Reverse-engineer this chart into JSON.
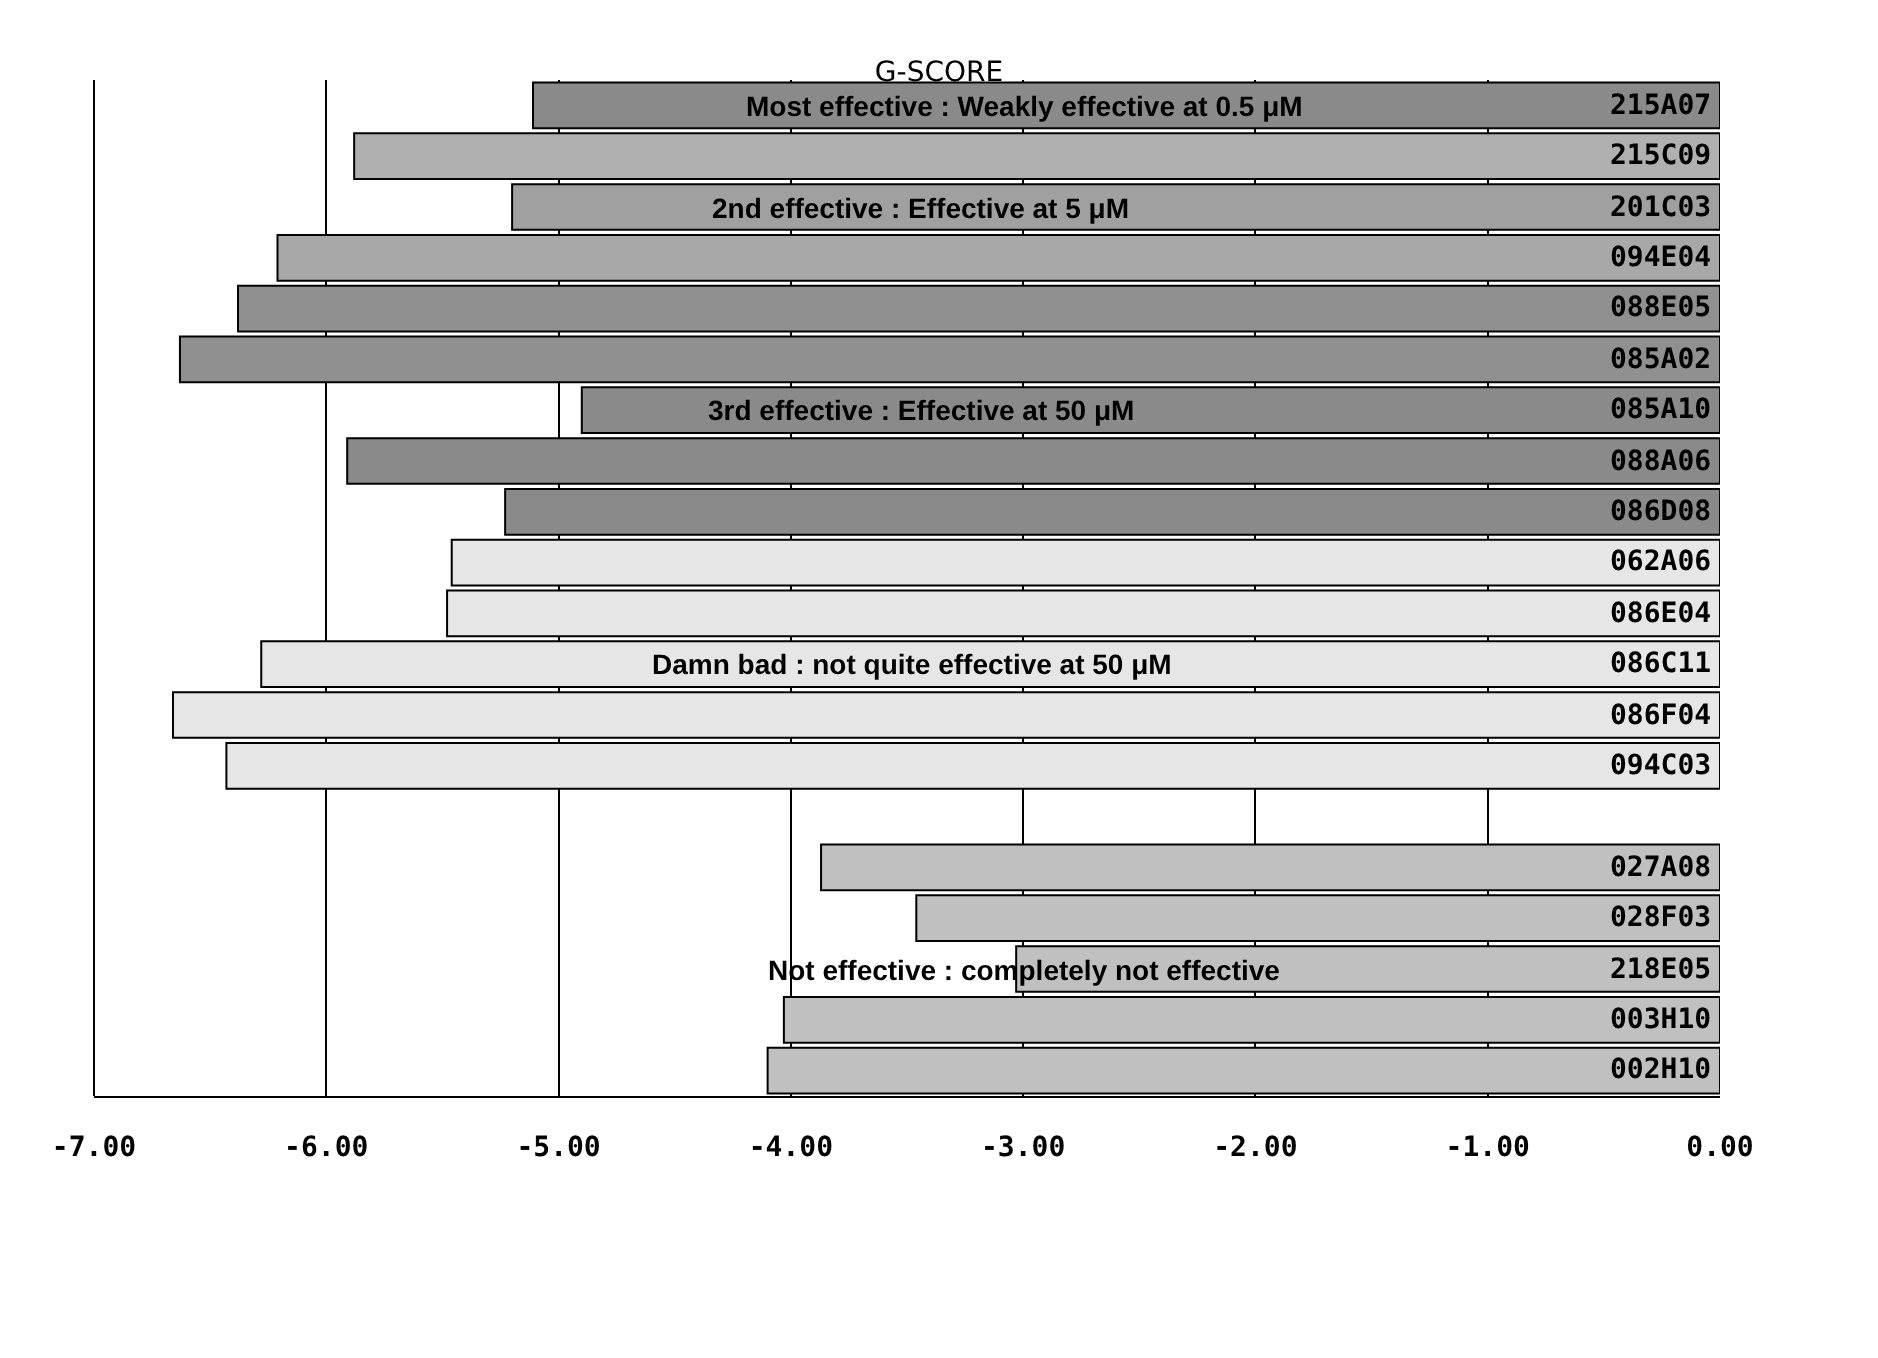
{
  "chart_data": {
    "type": "bar",
    "orientation": "horizontal",
    "title": "G-SCORE",
    "categories": [
      "215A07",
      "215C09",
      "201C03",
      "094E04",
      "088E05",
      "085A02",
      "085A10",
      "088A06",
      "086D08",
      "062A06",
      "086E04",
      "086C11",
      "086F04",
      "094C03",
      null,
      "027A08",
      "028F03",
      "218E05",
      "003H10",
      "002H10"
    ],
    "values": [
      -5.11,
      -5.88,
      -5.2,
      -6.21,
      -6.38,
      -6.63,
      -4.9,
      -5.91,
      -5.23,
      -5.46,
      -5.48,
      -6.28,
      -6.66,
      -6.43,
      null,
      -3.87,
      -3.46,
      -3.03,
      -4.03,
      -4.1
    ],
    "colors": [
      "#8a8a8a",
      "#b0b0b0",
      "#a0a0a0",
      "#a8a8a8",
      "#909090",
      "#909090",
      "#8a8a8a",
      "#8a8a8a",
      "#8a8a8a",
      "#e6e6e6",
      "#e6e6e6",
      "#e6e6e6",
      "#e6e6e6",
      "#e6e6e6",
      "#c0c0c0",
      "#c0c0c0",
      "#c0c0c0",
      "#c0c0c0",
      "#c0c0c0",
      "#c0c0c0"
    ],
    "xlim": [
      -7,
      0
    ],
    "xticks": [
      {
        "value": -7,
        "label": "-7.00"
      },
      {
        "value": -6,
        "label": "-6.00"
      },
      {
        "value": -5,
        "label": "-5.00"
      },
      {
        "value": -4,
        "label": "-4.00"
      },
      {
        "value": -3,
        "label": "-3.00"
      },
      {
        "value": -2,
        "label": "-2.00"
      },
      {
        "value": -1,
        "label": "-1.00"
      },
      {
        "value": 0,
        "label": "0.00"
      }
    ],
    "grid": "x",
    "annotations": [
      {
        "text": "Most effective : Weakly effective at 0.5 μM",
        "x": -3.0,
        "y": "215A07"
      },
      {
        "text": "2nd effective : Effective at 5 μM",
        "x": -3.44,
        "y": "201C03"
      },
      {
        "text": "3rd effective : Effective at 50 μM",
        "x": -3.44,
        "y": "085A10"
      },
      {
        "text": "Damn bad : not quite effective at 50 μM",
        "x": -3.48,
        "y": "086C11"
      },
      {
        "text": "Not effective : completely not effective",
        "x": -3.0,
        "y": "218E05"
      }
    ]
  }
}
